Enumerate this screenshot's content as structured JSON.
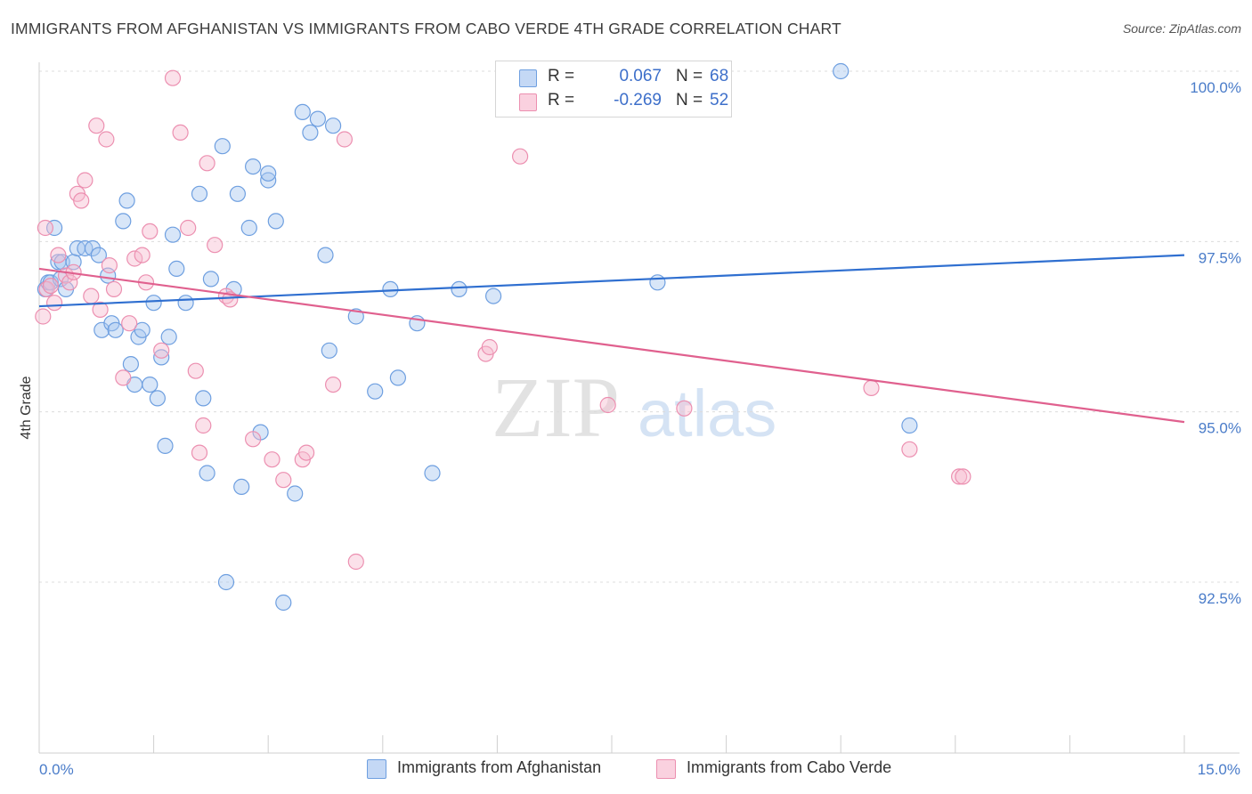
{
  "title": "IMMIGRANTS FROM AFGHANISTAN VS IMMIGRANTS FROM CABO VERDE 4TH GRADE CORRELATION CHART",
  "source": "Source: ZipAtlas.com",
  "watermark": {
    "zip": "ZIP",
    "atlas": "atlas"
  },
  "legend": {
    "rows": [
      {
        "r_label": "R =",
        "r_value": "0.067",
        "n_label": "N =",
        "n_value": "68",
        "color": "#a9c8f0",
        "border": "#6e9fe0"
      },
      {
        "r_label": "R =",
        "r_value": "-0.269",
        "n_label": "N =",
        "n_value": "52",
        "color": "#f7bcd0",
        "border": "#ec8fb0"
      }
    ]
  },
  "bottom_legend": {
    "afghanistan": "Immigrants from Afghanistan",
    "cabo_verde": "Immigrants from Cabo Verde"
  },
  "chart_data": {
    "type": "scatter",
    "title": "IMMIGRANTS FROM AFGHANISTAN VS IMMIGRANTS FROM CABO VERDE 4TH GRADE CORRELATION CHART",
    "xlabel": "",
    "ylabel": "4th Grade",
    "xlim": [
      0.0,
      15.0
    ],
    "ylim": [
      90.0,
      100.2
    ],
    "x_tick_labels": {
      "min": "0.0%",
      "max": "15.0%"
    },
    "y_ticks": [
      {
        "value": 92.5,
        "label": "92.5%"
      },
      {
        "value": 95.0,
        "label": "95.0%"
      },
      {
        "value": 97.5,
        "label": "97.5%"
      },
      {
        "value": 100.0,
        "label": "100.0%"
      }
    ],
    "grid": "horizontal dashed",
    "series": [
      {
        "name": "Immigrants from Afghanistan",
        "color": "#6e9fe0",
        "fill": "#a9c8f0",
        "trend": {
          "x": [
            0.0,
            15.0
          ],
          "y": [
            96.55,
            97.3
          ]
        },
        "points": [
          [
            0.08,
            96.8
          ],
          [
            0.12,
            96.9
          ],
          [
            0.15,
            96.9
          ],
          [
            0.2,
            97.7
          ],
          [
            0.25,
            97.2
          ],
          [
            0.28,
            96.95
          ],
          [
            0.3,
            97.2
          ],
          [
            0.35,
            96.8
          ],
          [
            0.45,
            97.2
          ],
          [
            0.5,
            97.4
          ],
          [
            0.6,
            97.4
          ],
          [
            0.7,
            97.4
          ],
          [
            0.78,
            97.3
          ],
          [
            0.9,
            97.0
          ],
          [
            0.82,
            96.2
          ],
          [
            0.95,
            96.3
          ],
          [
            1.0,
            96.2
          ],
          [
            1.1,
            97.8
          ],
          [
            1.15,
            98.1
          ],
          [
            1.2,
            95.7
          ],
          [
            1.25,
            95.4
          ],
          [
            1.3,
            96.1
          ],
          [
            1.35,
            96.2
          ],
          [
            1.45,
            95.4
          ],
          [
            1.5,
            96.6
          ],
          [
            1.55,
            95.2
          ],
          [
            1.6,
            95.8
          ],
          [
            1.65,
            94.5
          ],
          [
            1.7,
            96.1
          ],
          [
            1.75,
            97.6
          ],
          [
            1.8,
            97.1
          ],
          [
            1.92,
            96.6
          ],
          [
            2.1,
            98.2
          ],
          [
            2.15,
            95.2
          ],
          [
            2.2,
            94.1
          ],
          [
            2.25,
            96.95
          ],
          [
            2.4,
            98.9
          ],
          [
            2.45,
            92.5
          ],
          [
            2.55,
            96.8
          ],
          [
            2.6,
            98.2
          ],
          [
            2.65,
            93.9
          ],
          [
            2.75,
            97.7
          ],
          [
            2.8,
            98.6
          ],
          [
            2.9,
            94.7
          ],
          [
            3.0,
            98.4
          ],
          [
            3.0,
            98.5
          ],
          [
            3.1,
            97.8
          ],
          [
            3.2,
            92.2
          ],
          [
            3.35,
            93.8
          ],
          [
            3.45,
            99.4
          ],
          [
            3.55,
            99.1
          ],
          [
            3.65,
            99.3
          ],
          [
            3.75,
            97.3
          ],
          [
            3.8,
            95.9
          ],
          [
            3.85,
            99.2
          ],
          [
            4.15,
            96.4
          ],
          [
            4.4,
            95.3
          ],
          [
            4.6,
            96.8
          ],
          [
            4.7,
            95.5
          ],
          [
            4.95,
            96.3
          ],
          [
            5.15,
            94.1
          ],
          [
            5.5,
            96.8
          ],
          [
            5.95,
            96.7
          ],
          [
            7.55,
            100.0
          ],
          [
            7.5,
            100.0
          ],
          [
            8.1,
            96.9
          ],
          [
            10.5,
            100.0
          ],
          [
            11.4,
            94.8
          ]
        ]
      },
      {
        "name": "Immigrants from Cabo Verde",
        "color": "#ec8fb0",
        "fill": "#f7bcd0",
        "trend": {
          "x": [
            0.0,
            15.0
          ],
          "y": [
            97.1,
            94.85
          ]
        },
        "points": [
          [
            0.05,
            96.4
          ],
          [
            0.08,
            97.7
          ],
          [
            0.1,
            96.8
          ],
          [
            0.15,
            96.85
          ],
          [
            0.2,
            96.6
          ],
          [
            0.25,
            97.3
          ],
          [
            0.35,
            97.0
          ],
          [
            0.4,
            96.9
          ],
          [
            0.45,
            97.05
          ],
          [
            0.5,
            98.2
          ],
          [
            0.55,
            98.1
          ],
          [
            0.6,
            98.4
          ],
          [
            0.68,
            96.7
          ],
          [
            0.75,
            99.2
          ],
          [
            0.8,
            96.5
          ],
          [
            0.88,
            99.0
          ],
          [
            0.92,
            97.15
          ],
          [
            0.98,
            96.8
          ],
          [
            1.1,
            95.5
          ],
          [
            1.18,
            96.3
          ],
          [
            1.25,
            97.25
          ],
          [
            1.35,
            97.3
          ],
          [
            1.4,
            96.9
          ],
          [
            1.45,
            97.65
          ],
          [
            1.6,
            95.9
          ],
          [
            1.75,
            99.9
          ],
          [
            1.85,
            99.1
          ],
          [
            1.95,
            97.7
          ],
          [
            2.05,
            95.6
          ],
          [
            2.1,
            94.4
          ],
          [
            2.15,
            94.8
          ],
          [
            2.2,
            98.65
          ],
          [
            2.3,
            97.45
          ],
          [
            2.45,
            96.7
          ],
          [
            2.5,
            96.65
          ],
          [
            2.8,
            94.6
          ],
          [
            3.05,
            94.3
          ],
          [
            3.2,
            94.0
          ],
          [
            3.45,
            94.3
          ],
          [
            3.5,
            94.4
          ],
          [
            3.85,
            95.4
          ],
          [
            4.0,
            99.0
          ],
          [
            4.15,
            92.8
          ],
          [
            5.85,
            95.85
          ],
          [
            5.9,
            95.95
          ],
          [
            6.3,
            98.75
          ],
          [
            7.45,
            95.1
          ],
          [
            8.45,
            95.05
          ],
          [
            10.9,
            95.35
          ],
          [
            11.4,
            94.45
          ],
          [
            12.05,
            94.05
          ],
          [
            12.1,
            94.05
          ]
        ]
      }
    ]
  }
}
